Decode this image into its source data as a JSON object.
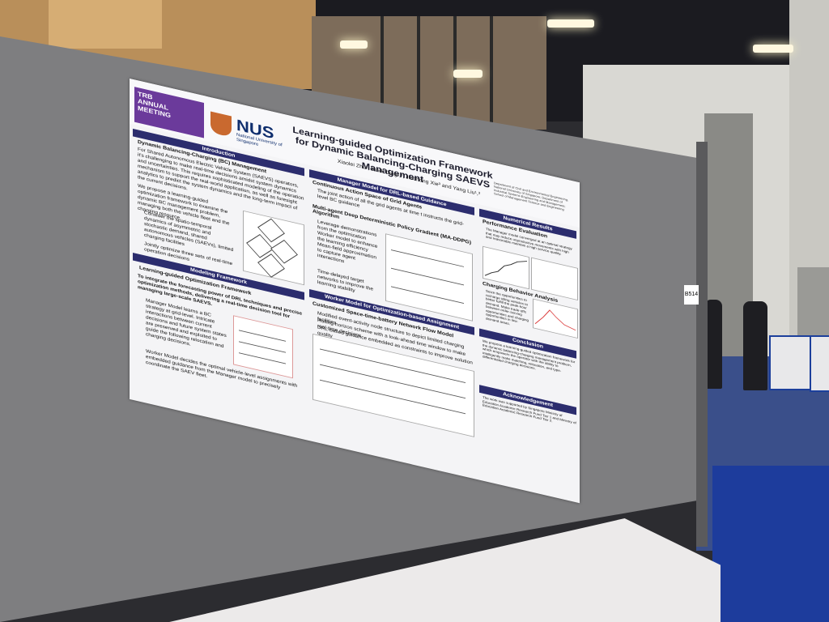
{
  "poster": {
    "logo_event_top": "TRB",
    "logo_event": "ANNUAL MEETING",
    "logo_org": "NUS",
    "logo_org_sub": "National University of Singapore",
    "title": "Learning-guided Optimization Framework for Dynamic Balancing-Charging SAEVS Management",
    "authors": "Xiaolei Zhu¹, Xindi Tang²,³, Jiaohong Xie³ and Yang Liu¹,³",
    "affiliations": "Department of Civil and Environmental Engineering, National University of Singapore; Department of Industrial Systems Engineering and Management; School of Management Science and Engineering",
    "sections": {
      "introduction": "Introduction",
      "manager_model": "Manager Model for DRL-based Guidance",
      "numerical_results": "Numerical Results",
      "modeling_framework": "Modeling Framework",
      "worker_model": "Worker Model for Optimization-based Assignment",
      "conclusion": "Conclusion",
      "acknowledgement": "Acknowledgement"
    },
    "intro_heading": "Dynamic Balancing-Charging (BC) Management",
    "intro_text": "For Shared Autonomous Electric Vehicle System (SAEVS) operators, it's challenging to make real-time decisions amidst system dynamics and uncertainties. This requires sophisticated modeling of the operation mechanism to support the real-world application, as well as foresight analytics to predict the system dynamics and the long-term impact of the current decisions.",
    "intro_text2": "We propose a learning-guided optimization framework to examine the dynamic BC management problem, managing both the vehicle fleet and the charging resource.",
    "intro_bullet1": "Consider the spatio-temporal dynamics of asymmetric and stochastic demand, shared autonomous vehicles (SAEVs), limited charging facilities",
    "intro_bullet2": "Jointly optimize three sets of real-time operation decisions",
    "framework_heading": "Learning-guided Optimization Framework",
    "framework_text": "To integrate the forecasting power of DRL techniques and precise optimization methods, delivering a real-time decision tool for managing large-scale SAEVS.",
    "manager_text": "Manager Model learns a BC strategy at grid-level. Intricate interactions between current decisions and future system states are preserved and exploited to guide the following relocation and charging decisions.",
    "worker_text": "Worker Model decides the optimal vehicle-level assignments with embedded guidance from the Manager model to precisely coordinate the SAEV fleet.",
    "cas_heading": "Continuous Action Space of Grid Agents",
    "cas_text": "The joint action of all the grid agents at time t instructs the grid-level BC guidance",
    "maddpg_heading": "Multi-agent Deep Deterministic Policy Gradient (MA-DDPG) Algorithm",
    "maddpg_b1": "Leverage demonstrations from the optimization Worker model to enhance the learning efficiency",
    "maddpg_b2": "Mean-field approximation to capture agent interactions",
    "maddpg_b3": "Time-delayed target networks to improve the learning stability",
    "network_heading": "Customized Space-time-battery Network Flow Model",
    "network_b1": "Modified event-activity node structure to depict limited charging facilities",
    "network_b2": "Rolling-horizon scheme with a look-ahead time window to make real-time decisions",
    "network_b3": "DRL-based guidance embedded as constraints to improve solution quality",
    "perf_heading": "Performance Evaluation",
    "perf_text": "The Manager model converged at an optimal strategy that may reduce unproductive movements with high and reasonable maintain a high service quality.",
    "charging_heading": "Charging Behavior Analysis",
    "charging_text": "Seize the opportunities to recharge idling vehicles to better fulfill the peak-hour demand. Make trade-offs between order-serving opportunities and charging opportunities in low-demand areas.",
    "conclusion_text": "We propose a learning-guided optimization framework for the dynamic balancing-charging management problem, which empowers the operator with the ability to intelligently make matching, relocation, and type-differentiated charging decisions.",
    "ack_text": "The work was supported by Singapore Ministry of Education Academic Research Fund Tier 1 and Ministry of Education Academic Research Fund Tier 2."
  },
  "booth_tag": "B514"
}
